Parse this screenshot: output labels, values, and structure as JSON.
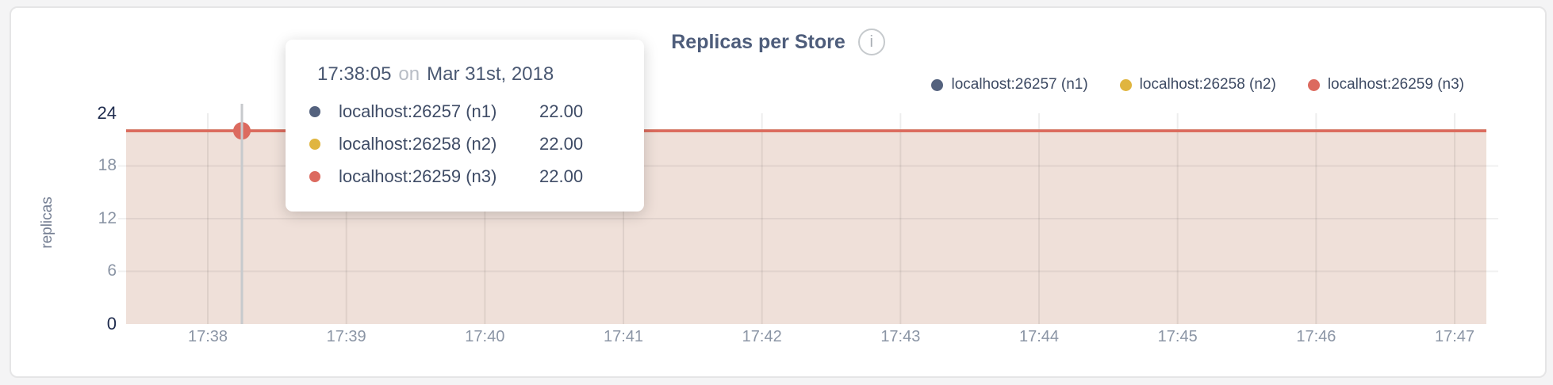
{
  "header": {
    "title": "Replicas per Store",
    "info_icon": "i"
  },
  "legend": {
    "items": [
      {
        "label": "localhost:26257 (n1)",
        "color": "#54627e"
      },
      {
        "label": "localhost:26258 (n2)",
        "color": "#e0b53f"
      },
      {
        "label": "localhost:26259 (n3)",
        "color": "#dc6a5f"
      }
    ]
  },
  "tooltip": {
    "time": "17:38:05",
    "connector": "on",
    "date": "Mar 31st, 2018",
    "rows": [
      {
        "label": "localhost:26257 (n1)",
        "value": "22.00",
        "color": "#54627e"
      },
      {
        "label": "localhost:26258 (n2)",
        "value": "22.00",
        "color": "#e0b53f"
      },
      {
        "label": "localhost:26259 (n3)",
        "value": "22.00",
        "color": "#dc6a5f"
      }
    ]
  },
  "chart_data": {
    "type": "area",
    "title": "Replicas per Store",
    "xlabel": "",
    "ylabel": "replicas",
    "x": [
      "17:38",
      "17:39",
      "17:40",
      "17:41",
      "17:42",
      "17:43",
      "17:44",
      "17:45",
      "17:46",
      "17:47"
    ],
    "y_ticks": [
      "0",
      "6",
      "12",
      "18",
      "24"
    ],
    "ylim": [
      0,
      24
    ],
    "grid": true,
    "legend_position": "top-right",
    "area_fill": "#efe0d9",
    "series": [
      {
        "name": "localhost:26257 (n1)",
        "color": "#54627e",
        "values": [
          22,
          22,
          22,
          22,
          22,
          22,
          22,
          22,
          22,
          22
        ]
      },
      {
        "name": "localhost:26258 (n2)",
        "color": "#e0b53f",
        "values": [
          22,
          22,
          22,
          22,
          22,
          22,
          22,
          22,
          22,
          22
        ]
      },
      {
        "name": "localhost:26259 (n3)",
        "color": "#dc6a5f",
        "values": [
          22,
          22,
          22,
          22,
          22,
          22,
          22,
          22,
          22,
          22
        ]
      }
    ],
    "hover": {
      "time": "17:38:05",
      "value": 22
    }
  }
}
